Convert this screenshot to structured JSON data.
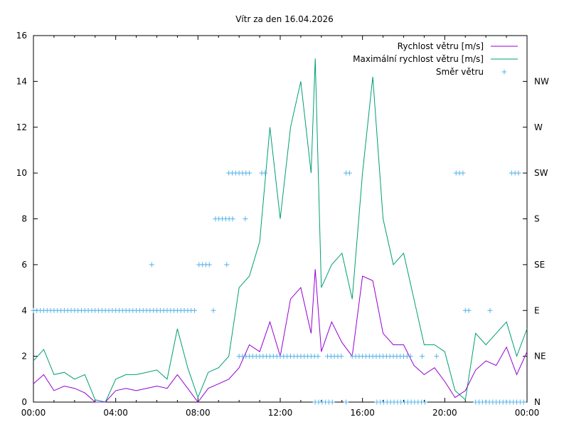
{
  "chart_data": {
    "type": "line",
    "title": "Vítr za den 16.04.2026",
    "xlabel": "",
    "ylabel": "",
    "xlim": [
      0,
      24
    ],
    "ylim": [
      0,
      16
    ],
    "grid": false,
    "legend_position": "top-right",
    "x_ticks": [
      {
        "v": 0,
        "label": "00:00"
      },
      {
        "v": 4,
        "label": "04:00"
      },
      {
        "v": 8,
        "label": "08:00"
      },
      {
        "v": 12,
        "label": "12:00"
      },
      {
        "v": 16,
        "label": "16:00"
      },
      {
        "v": 20,
        "label": "20:00"
      },
      {
        "v": 24,
        "label": "00:00"
      }
    ],
    "y_ticks": [
      0,
      2,
      4,
      6,
      8,
      10,
      12,
      14,
      16
    ],
    "y2_ticks": [
      {
        "v": 0,
        "label": "N"
      },
      {
        "v": 2,
        "label": "NE"
      },
      {
        "v": 4,
        "label": "E"
      },
      {
        "v": 6,
        "label": "SE"
      },
      {
        "v": 8,
        "label": "S"
      },
      {
        "v": 10,
        "label": "SW"
      },
      {
        "v": 12,
        "label": "W"
      },
      {
        "v": 14,
        "label": "NW"
      }
    ],
    "x_hours": [
      0,
      0.5,
      1,
      1.5,
      2,
      2.5,
      3,
      3.5,
      4,
      4.5,
      5,
      5.5,
      6,
      6.5,
      7,
      7.5,
      8,
      8.5,
      9,
      9.5,
      10,
      10.5,
      11,
      11.5,
      12,
      12.5,
      13,
      13.5,
      13.7,
      14,
      14.5,
      15,
      15.5,
      16,
      16.5,
      17,
      17.5,
      18,
      18.5,
      19,
      19.5,
      20,
      20.5,
      21,
      21.5,
      22,
      22.5,
      23,
      23.5,
      24
    ],
    "series": [
      {
        "name": "Rychlost větru [m/s]",
        "color": "#9400d3",
        "values": [
          0.8,
          1.2,
          0.5,
          0.7,
          0.6,
          0.4,
          0.0,
          0.0,
          0.5,
          0.6,
          0.5,
          0.6,
          0.7,
          0.6,
          1.2,
          0.6,
          0.0,
          0.6,
          0.8,
          1.0,
          1.5,
          2.5,
          2.2,
          3.5,
          2.0,
          4.5,
          5.0,
          3.0,
          5.8,
          2.2,
          3.5,
          2.6,
          2.0,
          5.5,
          5.3,
          3.0,
          2.5,
          2.5,
          1.6,
          1.2,
          1.5,
          0.9,
          0.2,
          0.5,
          1.4,
          1.8,
          1.6,
          2.4,
          1.2,
          2.2
        ]
      },
      {
        "name": "Maximální rychlost větru [m/s]",
        "color": "#009e73",
        "values": [
          1.8,
          2.3,
          1.2,
          1.3,
          1.0,
          1.2,
          0.1,
          0.0,
          1.0,
          1.2,
          1.2,
          1.3,
          1.4,
          1.0,
          3.2,
          1.5,
          0.2,
          1.3,
          1.5,
          2.0,
          5.0,
          5.5,
          7.0,
          12.0,
          8.0,
          12.0,
          14.0,
          10.0,
          15.0,
          5.0,
          6.0,
          6.5,
          4.5,
          10.0,
          14.2,
          8.0,
          6.0,
          6.5,
          4.5,
          2.5,
          2.5,
          2.2,
          0.5,
          0.1,
          3.0,
          2.5,
          3.0,
          3.5,
          2.0,
          3.2
        ]
      }
    ],
    "direction_series": {
      "name": "Směr větru",
      "color": "#56b4e9",
      "step_hours": 0.1667,
      "runs": [
        {
          "from": 0,
          "to": 8.0,
          "value": 4
        },
        {
          "from": 5.75,
          "to": 5.75,
          "value": 6
        },
        {
          "from": 8.05,
          "to": 8.65,
          "value": 6
        },
        {
          "from": 8.75,
          "to": 8.75,
          "value": 4
        },
        {
          "from": 9.4,
          "to": 9.4,
          "value": 6
        },
        {
          "from": 8.85,
          "to": 9.8,
          "value": 8
        },
        {
          "from": 10.3,
          "to": 10.3,
          "value": 8
        },
        {
          "from": 9.5,
          "to": 10.55,
          "value": 10
        },
        {
          "from": 11.1,
          "to": 11.3,
          "value": 10
        },
        {
          "from": 15.2,
          "to": 15.4,
          "value": 10
        },
        {
          "from": 20.55,
          "to": 21.0,
          "value": 10
        },
        {
          "from": 23.25,
          "to": 23.6,
          "value": 10
        },
        {
          "from": 10.0,
          "to": 14.0,
          "value": 2
        },
        {
          "from": 14.3,
          "to": 15.1,
          "value": 2
        },
        {
          "from": 15.5,
          "to": 18.5,
          "value": 2
        },
        {
          "from": 18.9,
          "to": 18.9,
          "value": 2
        },
        {
          "from": 19.6,
          "to": 19.6,
          "value": 2
        },
        {
          "from": 13.7,
          "to": 14.6,
          "value": 0
        },
        {
          "from": 15.2,
          "to": 15.2,
          "value": 0
        },
        {
          "from": 16.7,
          "to": 19.1,
          "value": 0
        },
        {
          "from": 21.5,
          "to": 24.0,
          "value": 0
        },
        {
          "from": 21.0,
          "to": 21.3,
          "value": 4
        },
        {
          "from": 22.2,
          "to": 22.2,
          "value": 4
        }
      ]
    }
  }
}
